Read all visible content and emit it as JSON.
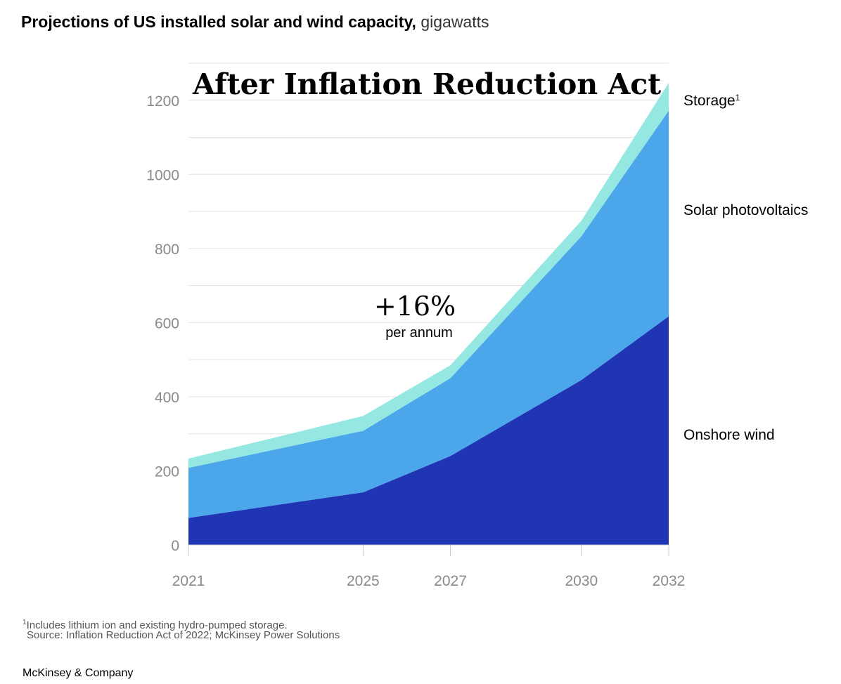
{
  "header": {
    "title_bold": "Projections of US installed solar and wind capacity,",
    "title_unit": "gigawatts"
  },
  "chart_data": {
    "type": "area",
    "stacked": true,
    "title": "After Inflation Reduction Act",
    "x": [
      2021,
      2025,
      2027,
      2030,
      2032
    ],
    "x_tick_labels": [
      "2021",
      "2025",
      "2027",
      "2030",
      "2032"
    ],
    "ylim": [
      0,
      1300
    ],
    "y_ticks": [
      0,
      200,
      400,
      600,
      800,
      1000,
      1200
    ],
    "y_tick_labels": [
      "0",
      "200",
      "400",
      "600",
      "800",
      "1000",
      "1200"
    ],
    "grid": true,
    "series": [
      {
        "name": "Onshore wind",
        "values": [
          73,
          142,
          240,
          445,
          617
        ],
        "color": "#1f35b3"
      },
      {
        "name": "Solar photovoltaics",
        "values": [
          135,
          166,
          210,
          388,
          555
        ],
        "color": "#4ca6ea"
      },
      {
        "name": "Storage",
        "sup": "1",
        "values": [
          25,
          40,
          35,
          42,
          75
        ],
        "color": "#95e8e2"
      }
    ],
    "annotation": {
      "value": "+16%",
      "label": "per annum"
    }
  },
  "footnote": {
    "marker": "1",
    "text": "Includes lithium ion and existing hydro-pumped storage."
  },
  "source": "Source: Inflation Reduction Act of 2022; McKinsey Power Solutions",
  "brand": "McKinsey & Company"
}
